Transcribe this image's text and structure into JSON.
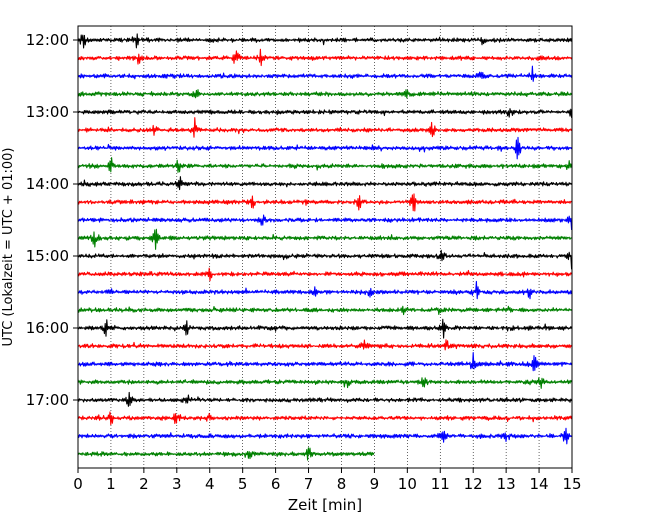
{
  "chart_data": {
    "type": "line",
    "title": "",
    "xlabel": "Zeit  [min]",
    "ylabel": "UTC (Lokalzeit = UTC + 01:00)",
    "xlim": [
      0,
      15
    ],
    "x_ticks": [
      "0",
      "1",
      "2",
      "3",
      "4",
      "5",
      "6",
      "7",
      "8",
      "9",
      "10",
      "11",
      "12",
      "13",
      "14",
      "15"
    ],
    "y_ticks": [
      "12:00",
      "13:00",
      "14:00",
      "15:00",
      "16:00",
      "17:00"
    ],
    "grid": "vertical dotted lines at each minute",
    "color_cycle": [
      "#000000",
      "#ff0000",
      "#0000ff",
      "#008000"
    ],
    "traces_per_hour": 4,
    "minutes_per_trace": 15,
    "series": [
      {
        "start": "12:00",
        "color": "#000000",
        "end_min": 15,
        "events": [
          [
            0.15,
            0.45
          ],
          [
            1.75,
            0.4
          ],
          [
            12.3,
            0.25
          ]
        ]
      },
      {
        "start": "12:15",
        "color": "#ff0000",
        "end_min": 15,
        "events": [
          [
            1.8,
            0.3
          ],
          [
            4.8,
            0.45
          ],
          [
            5.55,
            0.3
          ]
        ]
      },
      {
        "start": "12:30",
        "color": "#0000ff",
        "end_min": 15,
        "events": [
          [
            12.2,
            0.35
          ],
          [
            13.8,
            0.3
          ]
        ]
      },
      {
        "start": "12:45",
        "color": "#008000",
        "end_min": 15,
        "events": [
          [
            3.6,
            0.2
          ],
          [
            10.0,
            0.2
          ]
        ]
      },
      {
        "start": "13:00",
        "color": "#000000",
        "end_min": 15,
        "events": [
          [
            13.1,
            0.3
          ],
          [
            15.0,
            0.3
          ]
        ]
      },
      {
        "start": "13:15",
        "color": "#ff0000",
        "end_min": 15,
        "events": [
          [
            3.55,
            0.4
          ],
          [
            10.75,
            0.4
          ],
          [
            2.3,
            0.15
          ]
        ]
      },
      {
        "start": "13:30",
        "color": "#0000ff",
        "end_min": 15,
        "events": [
          [
            13.35,
            0.45
          ]
        ]
      },
      {
        "start": "13:45",
        "color": "#008000",
        "end_min": 15,
        "events": [
          [
            1.0,
            0.3
          ],
          [
            3.05,
            0.3
          ],
          [
            14.9,
            0.2
          ]
        ]
      },
      {
        "start": "14:00",
        "color": "#000000",
        "end_min": 15,
        "events": [
          [
            0.2,
            0.15
          ],
          [
            3.1,
            0.25
          ]
        ]
      },
      {
        "start": "14:15",
        "color": "#ff0000",
        "end_min": 15,
        "events": [
          [
            5.3,
            0.3
          ],
          [
            8.55,
            0.3
          ],
          [
            10.2,
            0.45
          ]
        ]
      },
      {
        "start": "14:30",
        "color": "#0000ff",
        "end_min": 15,
        "events": [
          [
            5.6,
            0.25
          ],
          [
            15.0,
            0.4
          ]
        ]
      },
      {
        "start": "14:45",
        "color": "#008000",
        "end_min": 15,
        "events": [
          [
            0.5,
            0.35
          ],
          [
            2.35,
            0.45
          ]
        ]
      },
      {
        "start": "15:00",
        "color": "#000000",
        "end_min": 15,
        "events": [
          [
            15.0,
            0.5
          ],
          [
            11.05,
            0.2
          ]
        ]
      },
      {
        "start": "15:15",
        "color": "#ff0000",
        "end_min": 15,
        "events": [
          [
            4.0,
            0.2
          ],
          [
            2.2,
            0.15
          ]
        ]
      },
      {
        "start": "15:30",
        "color": "#0000ff",
        "end_min": 15,
        "events": [
          [
            7.2,
            0.2
          ],
          [
            8.85,
            0.2
          ],
          [
            12.1,
            0.35
          ],
          [
            13.7,
            0.3
          ]
        ]
      },
      {
        "start": "15:45",
        "color": "#008000",
        "end_min": 15,
        "events": [
          [
            9.9,
            0.25
          ],
          [
            11.0,
            0.2
          ]
        ]
      },
      {
        "start": "16:00",
        "color": "#000000",
        "end_min": 15,
        "events": [
          [
            0.85,
            0.35
          ],
          [
            3.3,
            0.3
          ],
          [
            11.1,
            0.35
          ],
          [
            13.1,
            0.25
          ]
        ]
      },
      {
        "start": "16:15",
        "color": "#ff0000",
        "end_min": 15,
        "events": [
          [
            8.7,
            0.3
          ],
          [
            11.2,
            0.2
          ]
        ]
      },
      {
        "start": "16:30",
        "color": "#0000ff",
        "end_min": 15,
        "events": [
          [
            12.0,
            0.35
          ],
          [
            13.85,
            0.4
          ]
        ]
      },
      {
        "start": "16:45",
        "color": "#008000",
        "end_min": 15,
        "events": [
          [
            8.15,
            0.35
          ],
          [
            10.5,
            0.25
          ],
          [
            14.05,
            0.25
          ]
        ]
      },
      {
        "start": "17:00",
        "color": "#000000",
        "end_min": 15,
        "events": [
          [
            1.55,
            0.3
          ],
          [
            3.35,
            0.2
          ]
        ]
      },
      {
        "start": "17:15",
        "color": "#ff0000",
        "end_min": 15,
        "events": [
          [
            1.0,
            0.3
          ],
          [
            3.0,
            0.35
          ],
          [
            3.95,
            0.2
          ]
        ]
      },
      {
        "start": "17:30",
        "color": "#0000ff",
        "end_min": 15,
        "events": [
          [
            11.1,
            0.2
          ],
          [
            13.0,
            0.25
          ],
          [
            14.8,
            0.35
          ]
        ]
      },
      {
        "start": "17:45",
        "color": "#008000",
        "end_min": 9,
        "events": [
          [
            5.2,
            0.2
          ],
          [
            7.0,
            0.3
          ]
        ]
      }
    ]
  }
}
